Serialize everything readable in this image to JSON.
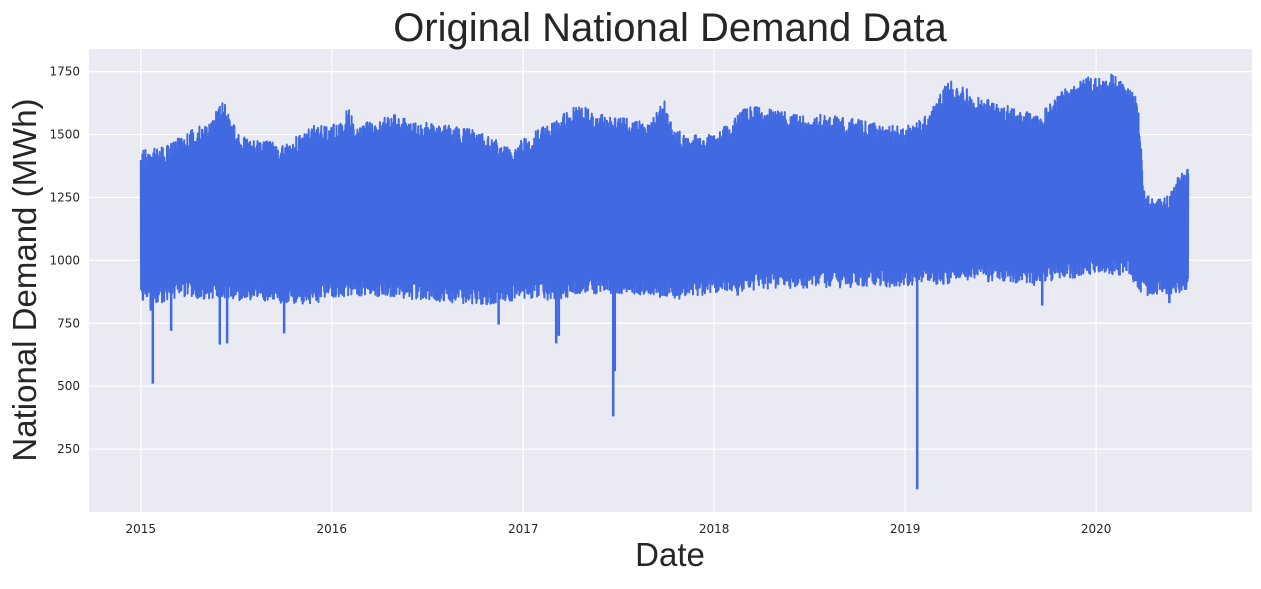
{
  "chart_data": {
    "type": "line",
    "title": "Original National Demand Data",
    "xlabel": "Date",
    "ylabel": "National Demand (MWh)",
    "x_range": [
      "2014-09-24",
      "2020-10-25"
    ],
    "ylim": [
      0,
      1840
    ],
    "grid": true,
    "legend": "none",
    "x_ticks": [
      "2015",
      "2016",
      "2017",
      "2018",
      "2019",
      "2020"
    ],
    "y_ticks": [
      250,
      500,
      750,
      1000,
      1250,
      1500,
      1750
    ],
    "series": [
      {
        "color": "#4169e1",
        "band_upper": [
          [
            "2015-01-01",
            1440
          ],
          [
            "2015-02-15",
            1450
          ],
          [
            "2015-04-01",
            1510
          ],
          [
            "2015-05-15",
            1560
          ],
          [
            "2015-06-10",
            1645
          ],
          [
            "2015-06-20",
            1580
          ],
          [
            "2015-07-15",
            1490
          ],
          [
            "2015-09-01",
            1480
          ],
          [
            "2015-10-01",
            1460
          ],
          [
            "2015-11-01",
            1500
          ],
          [
            "2015-12-01",
            1540
          ],
          [
            "2016-01-15",
            1540
          ],
          [
            "2016-02-03",
            1615
          ],
          [
            "2016-02-15",
            1520
          ],
          [
            "2016-03-15",
            1560
          ],
          [
            "2016-05-01",
            1580
          ],
          [
            "2016-06-15",
            1550
          ],
          [
            "2016-08-01",
            1540
          ],
          [
            "2016-10-01",
            1520
          ],
          [
            "2016-11-10",
            1480
          ],
          [
            "2016-12-01",
            1450
          ],
          [
            "2017-01-15",
            1500
          ],
          [
            "2017-03-01",
            1560
          ],
          [
            "2017-04-15",
            1620
          ],
          [
            "2017-06-01",
            1580
          ],
          [
            "2017-08-01",
            1560
          ],
          [
            "2017-09-01",
            1550
          ],
          [
            "2017-09-29",
            1640
          ],
          [
            "2017-10-15",
            1520
          ],
          [
            "2017-11-15",
            1500
          ],
          [
            "2018-01-01",
            1500
          ],
          [
            "2018-02-01",
            1550
          ],
          [
            "2018-03-01",
            1620
          ],
          [
            "2018-04-15",
            1610
          ],
          [
            "2018-06-01",
            1580
          ],
          [
            "2018-08-01",
            1580
          ],
          [
            "2018-10-01",
            1560
          ],
          [
            "2018-11-15",
            1540
          ],
          [
            "2019-01-01",
            1530
          ],
          [
            "2019-02-15",
            1580
          ],
          [
            "2019-03-25",
            1720
          ],
          [
            "2019-05-01",
            1680
          ],
          [
            "2019-06-15",
            1640
          ],
          [
            "2019-08-01",
            1600
          ],
          [
            "2019-09-15",
            1580
          ],
          [
            "2019-11-01",
            1680
          ],
          [
            "2019-12-15",
            1730
          ],
          [
            "2020-01-15",
            1720
          ],
          [
            "2020-02-01",
            1740
          ],
          [
            "2020-03-01",
            1690
          ],
          [
            "2020-03-20",
            1640
          ],
          [
            "2020-03-27",
            1480
          ],
          [
            "2020-04-01",
            1280
          ],
          [
            "2020-04-20",
            1240
          ],
          [
            "2020-05-15",
            1250
          ],
          [
            "2020-06-01",
            1320
          ],
          [
            "2020-06-25",
            1370
          ]
        ],
        "band_lower": [
          [
            "2015-01-01",
            870
          ],
          [
            "2015-02-01",
            830
          ],
          [
            "2015-03-01",
            840
          ],
          [
            "2015-04-01",
            850
          ],
          [
            "2015-06-01",
            840
          ],
          [
            "2015-08-01",
            840
          ],
          [
            "2015-10-01",
            830
          ],
          [
            "2015-11-15",
            820
          ],
          [
            "2016-01-01",
            850
          ],
          [
            "2016-03-01",
            860
          ],
          [
            "2016-05-01",
            850
          ],
          [
            "2016-07-01",
            840
          ],
          [
            "2016-09-01",
            830
          ],
          [
            "2016-11-01",
            820
          ],
          [
            "2017-01-01",
            850
          ],
          [
            "2017-03-01",
            840
          ],
          [
            "2017-05-01",
            870
          ],
          [
            "2017-07-01",
            860
          ],
          [
            "2017-09-01",
            860
          ],
          [
            "2017-11-01",
            840
          ],
          [
            "2018-01-01",
            870
          ],
          [
            "2018-03-01",
            880
          ],
          [
            "2018-05-01",
            890
          ],
          [
            "2018-07-01",
            890
          ],
          [
            "2018-09-01",
            890
          ],
          [
            "2018-11-01",
            900
          ],
          [
            "2019-01-01",
            890
          ],
          [
            "2019-03-01",
            900
          ],
          [
            "2019-05-01",
            920
          ],
          [
            "2019-07-01",
            910
          ],
          [
            "2019-09-01",
            900
          ],
          [
            "2019-11-01",
            920
          ],
          [
            "2020-01-01",
            950
          ],
          [
            "2020-03-01",
            940
          ],
          [
            "2020-04-01",
            860
          ],
          [
            "2020-05-01",
            860
          ],
          [
            "2020-06-25",
            880
          ]
        ],
        "dips": [
          [
            "2015-01-05",
            840
          ],
          [
            "2015-01-20",
            800
          ],
          [
            "2015-01-24",
            510
          ],
          [
            "2015-02-28",
            720
          ],
          [
            "2015-06-01",
            665
          ],
          [
            "2015-06-15",
            670
          ],
          [
            "2015-10-02",
            710
          ],
          [
            "2016-11-15",
            745
          ],
          [
            "2017-03-05",
            670
          ],
          [
            "2017-03-10",
            700
          ],
          [
            "2017-06-22",
            380
          ],
          [
            "2017-06-25",
            560
          ],
          [
            "2018-02-15",
            860
          ],
          [
            "2019-01-24",
            90
          ],
          [
            "2019-09-20",
            820
          ],
          [
            "2020-05-20",
            830
          ]
        ]
      }
    ]
  }
}
